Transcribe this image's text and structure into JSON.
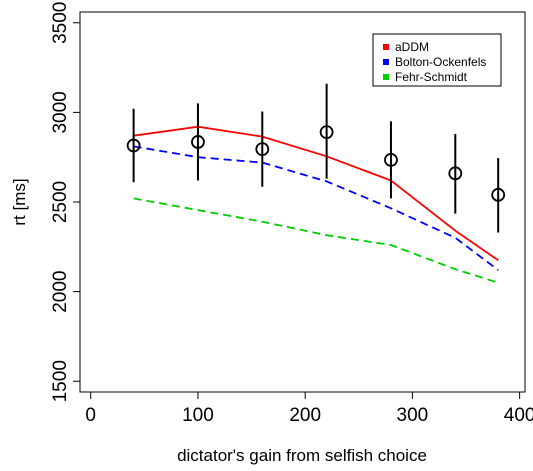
{
  "chart_data": {
    "type": "line",
    "title": "",
    "xlabel": "dictator's gain from selfish choice",
    "ylabel": "rt [ms]",
    "xlim": [
      -10,
      405
    ],
    "ylim": [
      1440,
      3560
    ],
    "x_ticks": [
      0,
      100,
      200,
      300,
      400
    ],
    "y_ticks": [
      1500,
      2000,
      2500,
      3000,
      3500
    ],
    "grid": false,
    "legend_position": "top-right",
    "observed": {
      "x": [
        40,
        100,
        160,
        220,
        280,
        340,
        380
      ],
      "mean": [
        2815,
        2835,
        2795,
        2890,
        2735,
        2660,
        2540
      ],
      "err_low": [
        2610,
        2620,
        2585,
        2630,
        2520,
        2435,
        2330
      ],
      "err_high": [
        3020,
        3050,
        3005,
        3160,
        2950,
        2880,
        2745
      ],
      "color": "#000000"
    },
    "series": [
      {
        "name": "aDDM",
        "color": "#ff0000",
        "dash": "solid",
        "x": [
          40,
          100,
          160,
          220,
          280,
          340,
          380
        ],
        "values": [
          2870,
          2920,
          2865,
          2755,
          2620,
          2340,
          2175
        ]
      },
      {
        "name": "Bolton-Ockenfels",
        "color": "#0000ff",
        "dash": "dashed",
        "x": [
          40,
          100,
          160,
          220,
          280,
          340,
          380
        ],
        "values": [
          2810,
          2750,
          2720,
          2615,
          2465,
          2300,
          2120
        ]
      },
      {
        "name": "Fehr-Schmidt",
        "color": "#00cc00",
        "dash": "dashed",
        "x": [
          40,
          100,
          160,
          220,
          280,
          340,
          380
        ],
        "values": [
          2520,
          2455,
          2390,
          2315,
          2260,
          2125,
          2050
        ]
      }
    ]
  }
}
